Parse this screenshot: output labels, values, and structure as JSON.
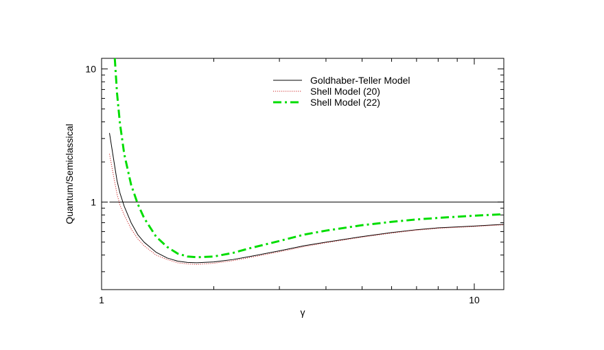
{
  "chart_data": {
    "type": "line",
    "xlabel": "γ",
    "ylabel": "Quantum/Semiclassical",
    "xscale": "log",
    "yscale": "log",
    "xlim": [
      1,
      12
    ],
    "ylim": [
      0.22,
      12
    ],
    "x_tick_labels": [
      {
        "value": 1,
        "label": "1"
      },
      {
        "value": 10,
        "label": "10"
      }
    ],
    "y_tick_labels": [
      {
        "value": 1,
        "label": "1"
      },
      {
        "value": 10,
        "label": "10"
      }
    ],
    "legend_position": "top-right",
    "reference_line": {
      "y": 1,
      "x_from": 1.05,
      "x_to": 12,
      "color": "#000000"
    },
    "series": [
      {
        "name": "Goldhaber-Teller Model",
        "color": "#000000",
        "style": "solid",
        "x": [
          1.05,
          1.08,
          1.1,
          1.12,
          1.15,
          1.2,
          1.25,
          1.3,
          1.4,
          1.5,
          1.6,
          1.7,
          1.8,
          2.0,
          2.25,
          2.5,
          3.0,
          3.5,
          4.0,
          5.0,
          6.0,
          7.0,
          8.0,
          10.0,
          12.0
        ],
        "y": [
          3.3,
          2.0,
          1.45,
          1.17,
          0.93,
          0.7,
          0.57,
          0.5,
          0.42,
          0.38,
          0.36,
          0.352,
          0.35,
          0.355,
          0.37,
          0.39,
          0.43,
          0.47,
          0.5,
          0.55,
          0.59,
          0.62,
          0.64,
          0.66,
          0.68
        ]
      },
      {
        "name": "Shell Model (20)",
        "color": "#cc2222",
        "style": "dotted",
        "x": [
          1.05,
          1.08,
          1.1,
          1.12,
          1.15,
          1.2,
          1.25,
          1.3,
          1.4,
          1.5,
          1.6,
          1.7,
          1.8,
          2.0,
          2.25,
          2.5,
          3.0,
          3.5,
          4.0,
          5.0,
          6.0,
          7.0,
          8.0,
          10.0,
          12.0
        ],
        "y": [
          2.3,
          1.5,
          1.15,
          0.95,
          0.8,
          0.63,
          0.53,
          0.47,
          0.4,
          0.37,
          0.35,
          0.343,
          0.34,
          0.347,
          0.363,
          0.383,
          0.423,
          0.463,
          0.495,
          0.545,
          0.585,
          0.615,
          0.635,
          0.655,
          0.675
        ]
      },
      {
        "name": "Shell Model (22)",
        "color": "#00dd00",
        "style": "dashdot",
        "x": [
          1.085,
          1.1,
          1.12,
          1.15,
          1.2,
          1.25,
          1.3,
          1.4,
          1.5,
          1.6,
          1.7,
          1.8,
          2.0,
          2.25,
          2.5,
          3.0,
          3.5,
          4.0,
          5.0,
          6.0,
          7.0,
          8.0,
          10.0,
          12.0
        ],
        "y": [
          12.0,
          6.6,
          3.9,
          2.3,
          1.35,
          0.97,
          0.76,
          0.55,
          0.46,
          0.41,
          0.39,
          0.385,
          0.39,
          0.415,
          0.45,
          0.51,
          0.57,
          0.61,
          0.67,
          0.71,
          0.74,
          0.76,
          0.79,
          0.81
        ]
      }
    ]
  }
}
